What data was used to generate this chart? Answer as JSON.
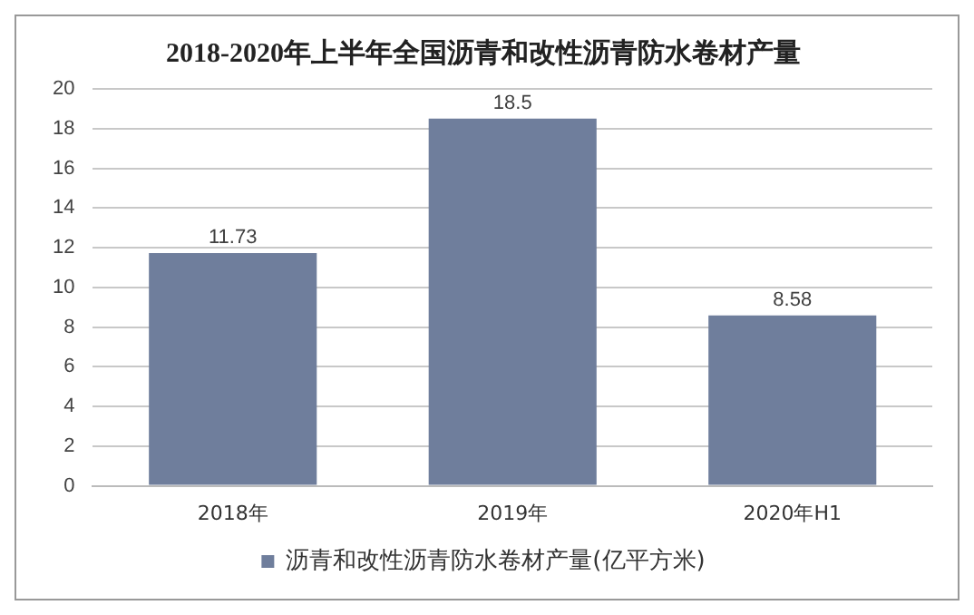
{
  "chart_data": {
    "type": "bar",
    "title": "2018-2020年上半年全国沥青和改性沥青防水卷材产量",
    "categories": [
      "2018年",
      "2019年",
      "2020年H1"
    ],
    "series": [
      {
        "name": "沥青和改性沥青防水卷材产量(亿平方米)",
        "color": "#6f7e9c",
        "values": [
          11.73,
          18.5,
          8.58
        ]
      }
    ],
    "ylim": [
      0,
      20
    ],
    "yticks": [
      0,
      2,
      4,
      6,
      8,
      10,
      12,
      14,
      16,
      18,
      20
    ],
    "grid": "y",
    "legend": "bottom",
    "data_labels": true
  }
}
